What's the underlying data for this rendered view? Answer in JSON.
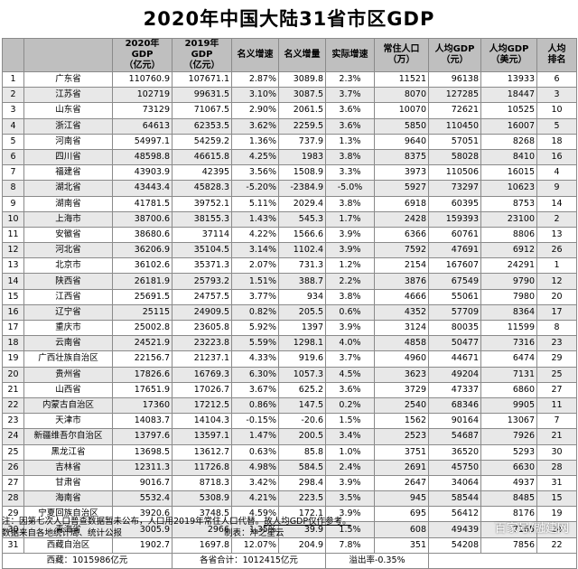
{
  "title": "2020年中国大陆31省市区GDP",
  "headers": [
    "",
    "",
    "2020年GDP\n（亿元）",
    "2019年GDP\n（亿元）",
    "名义增速",
    "名义增量",
    "实际增速",
    "常住人口\n（万）",
    "人均GDP\n（元）",
    "人均GDP\n（美元）",
    "人均\n排名"
  ],
  "rows": [
    [
      "1",
      "广东省",
      "110760.9",
      "107671.1",
      "2.87%",
      "3089.8",
      "2.3%",
      "11521",
      "96138",
      "13933",
      "6"
    ],
    [
      "2",
      "江苏省",
      "102719",
      "99631.5",
      "3.10%",
      "3087.5",
      "3.7%",
      "8070",
      "127285",
      "18447",
      "3"
    ],
    [
      "3",
      "山东省",
      "73129",
      "71067.5",
      "2.90%",
      "2061.5",
      "3.6%",
      "10070",
      "72621",
      "10525",
      "10"
    ],
    [
      "4",
      "浙江省",
      "64613",
      "62353.5",
      "3.62%",
      "2259.5",
      "3.6%",
      "5850",
      "110450",
      "16007",
      "5"
    ],
    [
      "5",
      "河南省",
      "54997.1",
      "54259.2",
      "1.36%",
      "737.9",
      "1.3%",
      "9640",
      "57051",
      "8268",
      "18"
    ],
    [
      "6",
      "四川省",
      "48598.8",
      "46615.8",
      "4.25%",
      "1983",
      "3.8%",
      "8375",
      "58028",
      "8410",
      "16"
    ],
    [
      "7",
      "福建省",
      "43903.9",
      "42395",
      "3.56%",
      "1508.9",
      "3.3%",
      "3973",
      "110506",
      "16015",
      "4"
    ],
    [
      "8",
      "湖北省",
      "43443.4",
      "45828.3",
      "-5.20%",
      "-2384.9",
      "-5.0%",
      "5927",
      "73297",
      "10623",
      "9"
    ],
    [
      "9",
      "湖南省",
      "41781.5",
      "39752.1",
      "5.11%",
      "2029.4",
      "3.8%",
      "6918",
      "60395",
      "8753",
      "14"
    ],
    [
      "10",
      "上海市",
      "38700.6",
      "38155.3",
      "1.43%",
      "545.3",
      "1.7%",
      "2428",
      "159393",
      "23100",
      "2"
    ],
    [
      "11",
      "安徽省",
      "38680.6",
      "37114",
      "4.22%",
      "1566.6",
      "3.9%",
      "6366",
      "60761",
      "8806",
      "13"
    ],
    [
      "12",
      "河北省",
      "36206.9",
      "35104.5",
      "3.14%",
      "1102.4",
      "3.9%",
      "7592",
      "47691",
      "6912",
      "26"
    ],
    [
      "13",
      "北京市",
      "36102.6",
      "35371.3",
      "2.07%",
      "731.3",
      "1.2%",
      "2154",
      "167607",
      "24291",
      "1"
    ],
    [
      "14",
      "陕西省",
      "26181.9",
      "25793.2",
      "1.51%",
      "388.7",
      "2.2%",
      "3876",
      "67549",
      "9790",
      "12"
    ],
    [
      "15",
      "江西省",
      "25691.5",
      "24757.5",
      "3.77%",
      "934",
      "3.8%",
      "4666",
      "55061",
      "7980",
      "20"
    ],
    [
      "16",
      "辽宁省",
      "25115",
      "24909.5",
      "0.82%",
      "205.5",
      "0.6%",
      "4352",
      "57709",
      "8364",
      "17"
    ],
    [
      "17",
      "重庆市",
      "25002.8",
      "23605.8",
      "5.92%",
      "1397",
      "3.9%",
      "3124",
      "80035",
      "11599",
      "8"
    ],
    [
      "18",
      "云南省",
      "24521.9",
      "23223.8",
      "5.59%",
      "1298.1",
      "4.0%",
      "4858",
      "50477",
      "7316",
      "23"
    ],
    [
      "19",
      "广西壮族自治区",
      "22156.7",
      "21237.1",
      "4.33%",
      "919.6",
      "3.7%",
      "4960",
      "44671",
      "6474",
      "29"
    ],
    [
      "20",
      "贵州省",
      "17826.6",
      "16769.3",
      "6.30%",
      "1057.3",
      "4.5%",
      "3623",
      "49204",
      "7131",
      "25"
    ],
    [
      "21",
      "山西省",
      "17651.9",
      "17026.7",
      "3.67%",
      "625.2",
      "3.6%",
      "3729",
      "47337",
      "6860",
      "27"
    ],
    [
      "22",
      "内蒙古自治区",
      "17360",
      "17212.5",
      "0.86%",
      "147.5",
      "0.2%",
      "2540",
      "68346",
      "9905",
      "11"
    ],
    [
      "23",
      "天津市",
      "14083.7",
      "14104.3",
      "-0.15%",
      "-20.6",
      "1.5%",
      "1562",
      "90164",
      "13067",
      "7"
    ],
    [
      "24",
      "新疆维吾尔自治区",
      "13797.6",
      "13597.1",
      "1.47%",
      "200.5",
      "3.4%",
      "2523",
      "54687",
      "7926",
      "21"
    ],
    [
      "25",
      "黑龙江省",
      "13698.5",
      "13612.7",
      "0.63%",
      "85.8",
      "1.0%",
      "3751",
      "36520",
      "5293",
      "30"
    ],
    [
      "26",
      "吉林省",
      "12311.3",
      "11726.8",
      "4.98%",
      "584.5",
      "2.4%",
      "2691",
      "45750",
      "6630",
      "28"
    ],
    [
      "27",
      "甘肃省",
      "9016.7",
      "8718.3",
      "3.42%",
      "298.4",
      "3.9%",
      "2647",
      "34064",
      "4937",
      "31"
    ],
    [
      "28",
      "海南省",
      "5532.4",
      "5308.9",
      "4.21%",
      "223.5",
      "3.5%",
      "945",
      "58544",
      "8485",
      "15"
    ],
    [
      "29",
      "宁夏回族自治区",
      "3920.6",
      "3748.5",
      "4.59%",
      "172.1",
      "3.9%",
      "695",
      "56412",
      "8176",
      "19"
    ],
    [
      "30",
      "青海省",
      "3005.9",
      "2966",
      "1.35%",
      "39.9",
      "1.5%",
      "608",
      "49439",
      "7165",
      "24"
    ],
    [
      "31",
      "西藏自治区",
      "1902.7",
      "1697.8",
      "12.07%",
      "204.9",
      "7.8%",
      "351",
      "54208",
      "7856",
      "22"
    ]
  ],
  "summary": {
    "west": "西藏：1015986亿元",
    "total": "各省合计：1012415亿元",
    "overflow": "溢出率-0.35%"
  },
  "note": "注：因第七次人口普查数据暂未公布，人口用2019年常住人口代替。",
  "note_underlined": "故人均GDP仅作参考。",
  "source": "数据来自各地统计局、统计公报",
  "author": "制表：冲之星云",
  "watermark": "百家号/融建网"
}
